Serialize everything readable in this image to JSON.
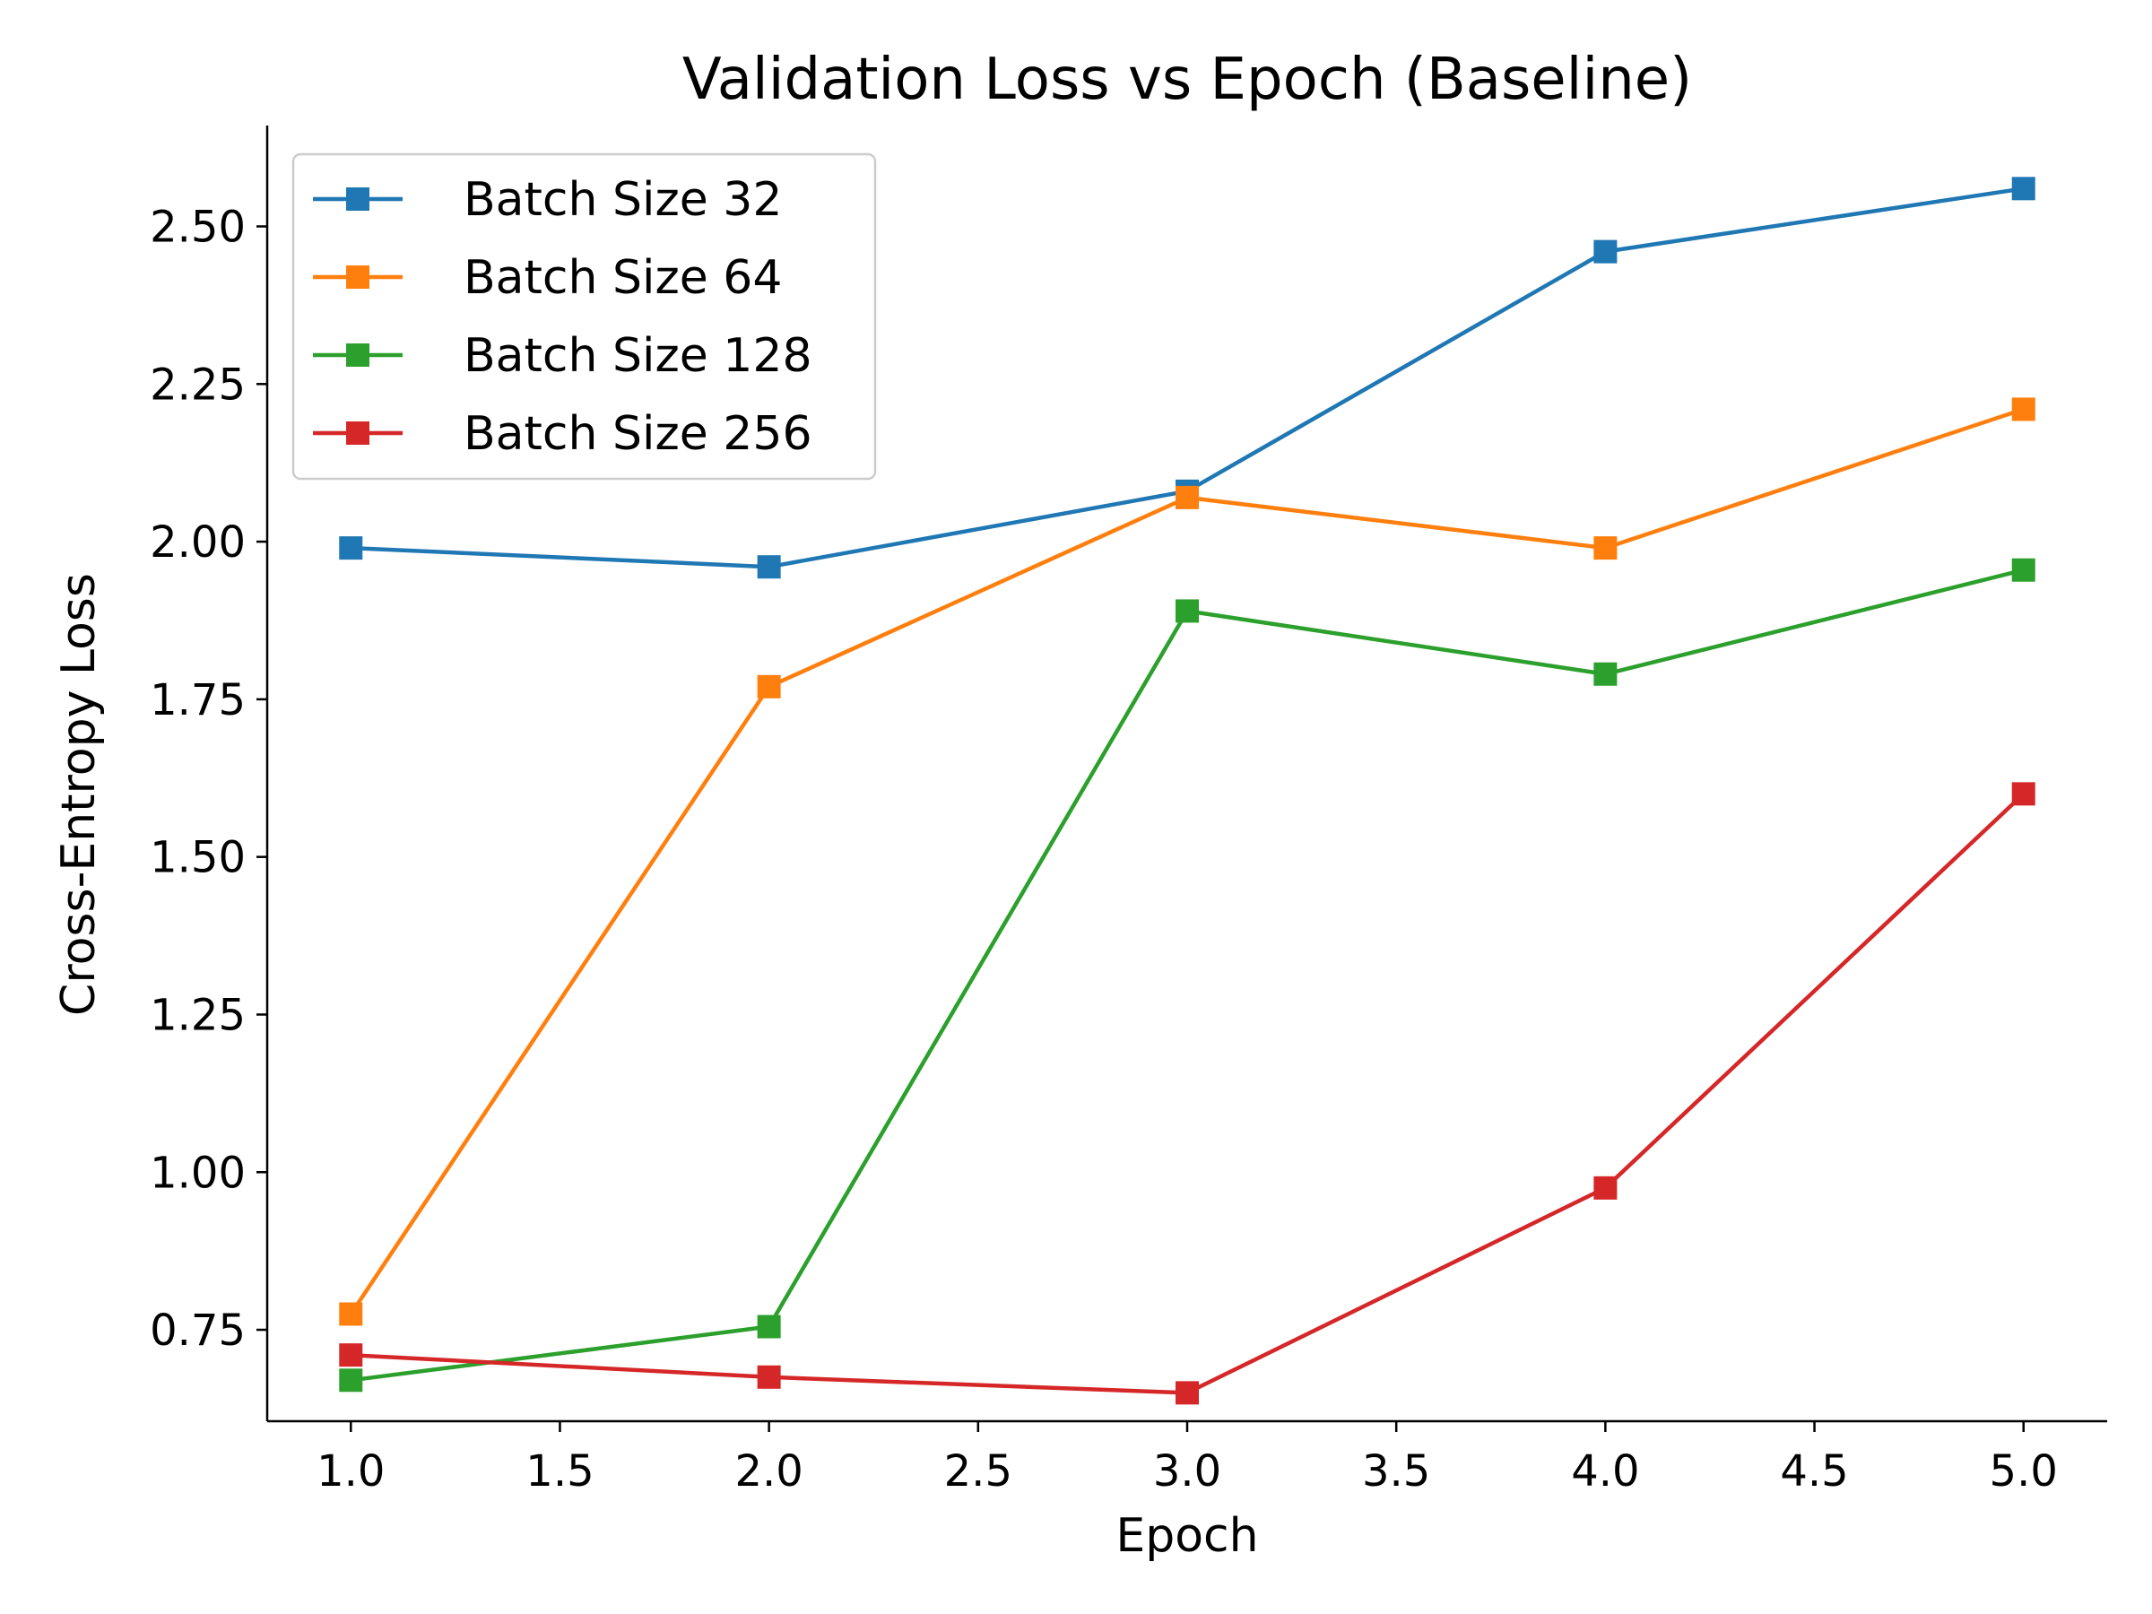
{
  "chart_data": {
    "type": "line",
    "title": "Validation Loss vs Epoch (Baseline)",
    "xlabel": "Epoch",
    "ylabel": "Cross-Entropy Loss",
    "x": [
      1.0,
      2.0,
      3.0,
      4.0,
      5.0
    ],
    "xlim": [
      0.8,
      5.2
    ],
    "ylim": [
      0.605,
      2.66
    ],
    "xticks": [
      1.0,
      1.5,
      2.0,
      2.5,
      3.0,
      3.5,
      4.0,
      4.5,
      5.0
    ],
    "xtick_labels": [
      "1.0",
      "1.5",
      "2.0",
      "2.5",
      "3.0",
      "3.5",
      "4.0",
      "4.5",
      "5.0"
    ],
    "yticks": [
      0.75,
      1.0,
      1.25,
      1.5,
      1.75,
      2.0,
      2.25,
      2.5
    ],
    "ytick_labels": [
      "0.75",
      "1.00",
      "1.25",
      "1.50",
      "1.75",
      "2.00",
      "2.25",
      "2.50"
    ],
    "grid": false,
    "legend_position": "top-left",
    "marker": "square",
    "series": [
      {
        "name": "Batch Size 32",
        "color": "#1f77b4",
        "values": [
          1.99,
          1.96,
          2.08,
          2.46,
          2.56
        ]
      },
      {
        "name": "Batch Size 64",
        "color": "#ff7f0e",
        "values": [
          0.775,
          1.77,
          2.07,
          1.99,
          2.21
        ]
      },
      {
        "name": "Batch Size 128",
        "color": "#2ca02c",
        "values": [
          0.67,
          0.755,
          1.89,
          1.79,
          1.955
        ]
      },
      {
        "name": "Batch Size 256",
        "color": "#d62728",
        "values": [
          0.71,
          0.675,
          0.65,
          0.975,
          1.6
        ]
      }
    ]
  }
}
